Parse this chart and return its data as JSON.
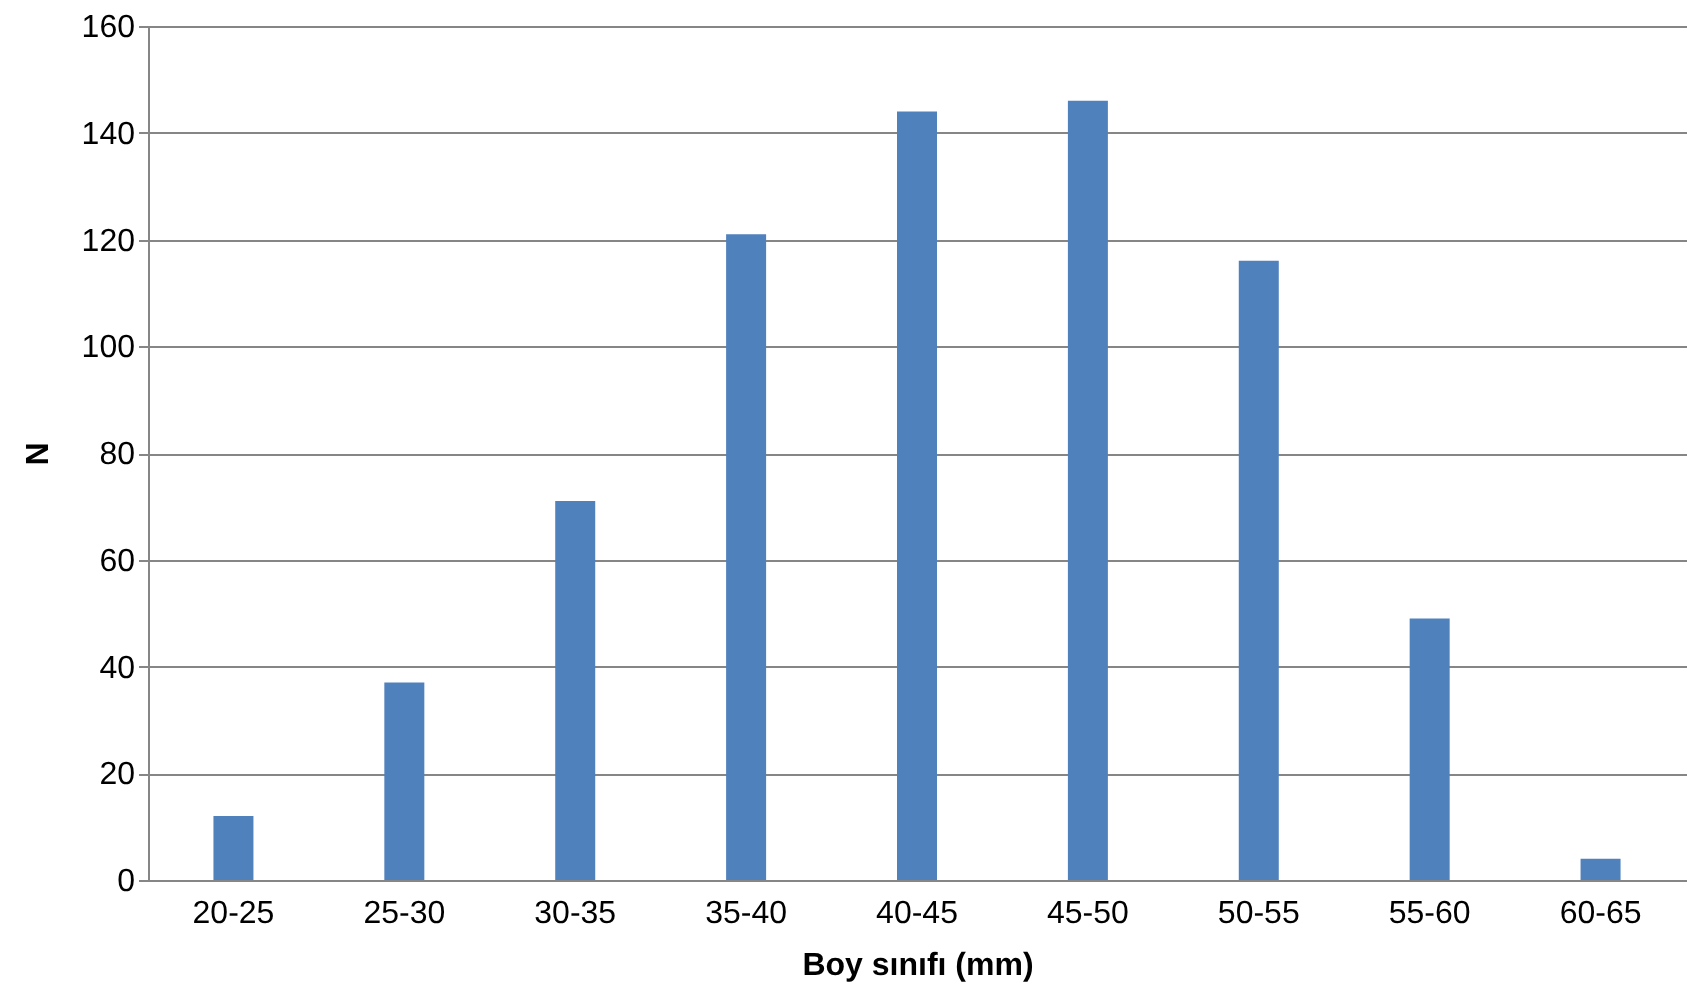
{
  "chart_data": {
    "type": "bar",
    "xlabel": "Boy sınıfı (mm)",
    "ylabel": "N",
    "categories": [
      "20-25",
      "25-30",
      "30-35",
      "35-40",
      "40-45",
      "45-50",
      "50-55",
      "55-60",
      "60-65"
    ],
    "values": [
      12,
      37,
      71,
      121,
      144,
      146,
      116,
      49,
      4
    ],
    "color": "#4f81bd",
    "ylim": [
      0,
      160
    ],
    "yticks": [
      0,
      20,
      40,
      60,
      80,
      100,
      120,
      140,
      160
    ],
    "grid": "y"
  }
}
